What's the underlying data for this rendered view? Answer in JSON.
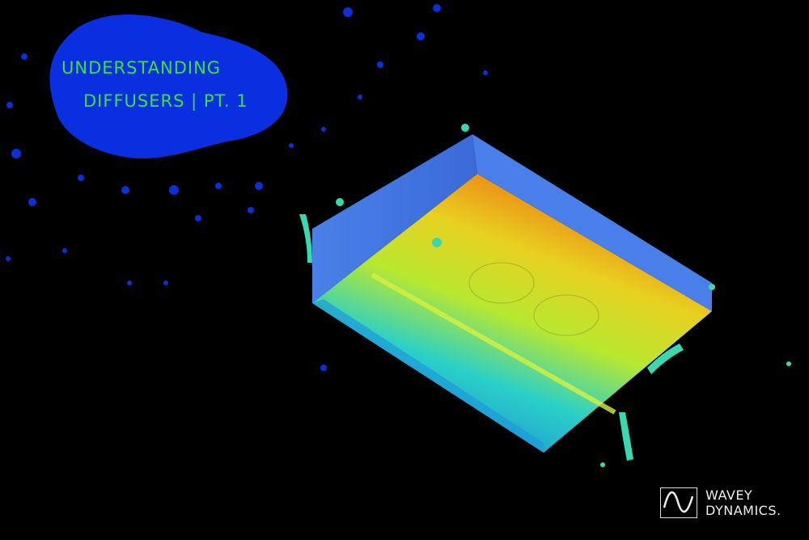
{
  "title": {
    "line1": "UNDERSTANDING",
    "line2": "DIFFUSERS | PT. 1",
    "color": "#3ee03a"
  },
  "logo": {
    "line1": "WAVEY",
    "line2": "DYNAMICS.",
    "icon": "sine-wave-icon"
  },
  "colors": {
    "background": "#000000",
    "splash": "#0a2fe0",
    "wall": "#4a78e0"
  }
}
